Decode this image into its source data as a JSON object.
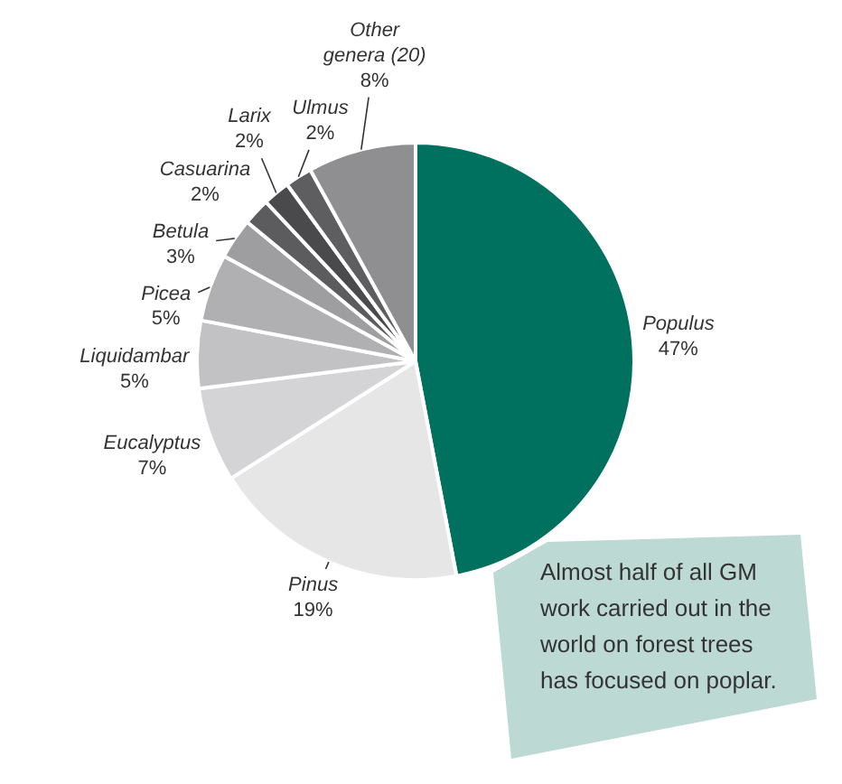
{
  "chart_data": {
    "type": "pie",
    "categories": [
      "Populus",
      "Pinus",
      "Eucalyptus",
      "Liquidambar",
      "Picea",
      "Betula",
      "Casuarina",
      "Larix",
      "Ulmus",
      "Other genera (20)"
    ],
    "values": [
      47,
      19,
      7,
      5,
      5,
      3,
      2,
      2,
      2,
      8
    ],
    "colors": [
      "#00705f",
      "#e6e6e6",
      "#d4d4d6",
      "#c2c2c4",
      "#b0b0b2",
      "#9e9ea0",
      "#5c5c5e",
      "#4a4a4c",
      "#5e5e60",
      "#8f8f91"
    ],
    "value_labels": [
      "47%",
      "19%",
      "7%",
      "5%",
      "5%",
      "3%",
      "2%",
      "2%",
      "2%",
      "8%"
    ],
    "annotations": [
      "Almost half of all GM work carried out in the world on forest trees has focused on poplar."
    ],
    "legend": false
  }
}
